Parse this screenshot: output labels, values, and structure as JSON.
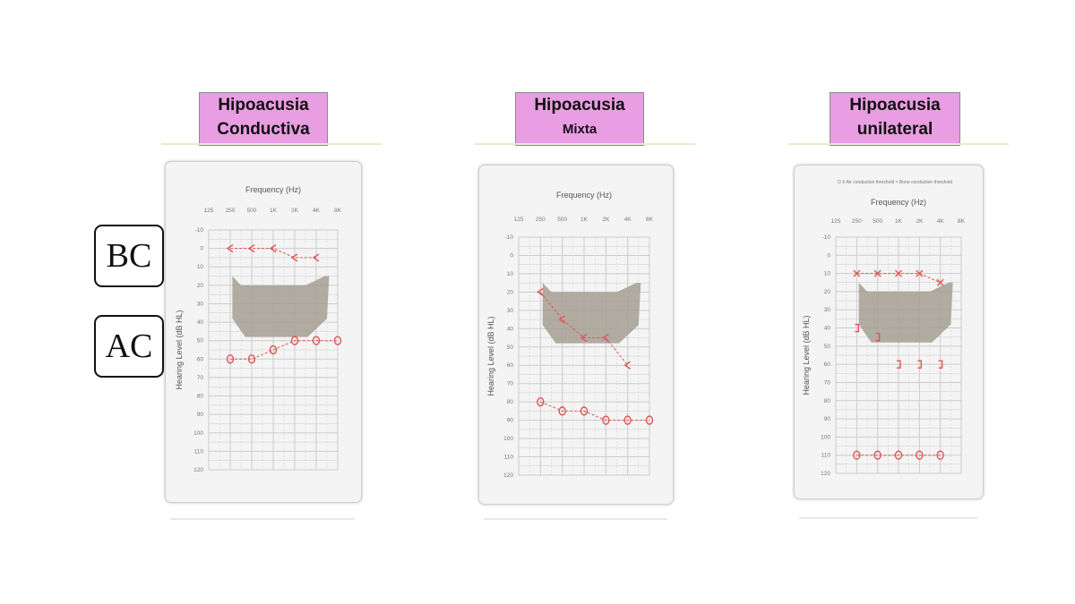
{
  "labels": {
    "bc": "BC",
    "ac": "AC"
  },
  "colors": {
    "title_bg": "#e99de3",
    "curve": "#e05555",
    "band": "#a59d93",
    "grid": "#cccccc"
  },
  "chart_data": [
    {
      "type": "line",
      "title_line1": "Hipoacusia",
      "title_line2": "Conductiva",
      "xlabel": "Frequency (Hz)",
      "ylabel": "Hearing Level (dB HL)",
      "x_ticks": [
        "125",
        "250",
        "500",
        "1K",
        "2K",
        "4K",
        "8K"
      ],
      "y_ticks": [
        "-10",
        "0",
        "10",
        "20",
        "30",
        "40",
        "50",
        "60",
        "70",
        "80",
        "90",
        "100",
        "110",
        "120"
      ],
      "ylim": [
        -10,
        120
      ],
      "y_inverted": true,
      "grid": true,
      "speech_banana": true,
      "series": [
        {
          "name": "BC",
          "marker": "<",
          "x_index": [
            1,
            2,
            3,
            4,
            5
          ],
          "values": [
            0,
            0,
            0,
            5,
            5
          ]
        },
        {
          "name": "AC",
          "marker": "O",
          "x_index": [
            1,
            2,
            3,
            4,
            5,
            6
          ],
          "values": [
            60,
            60,
            55,
            50,
            50,
            50
          ]
        }
      ]
    },
    {
      "type": "line",
      "title_line1": "Hipoacusia",
      "title_line2": "Mixta",
      "xlabel": "Frequency (Hz)",
      "ylabel": "Hearing Level (dB HL)",
      "x_ticks": [
        "125",
        "250",
        "500",
        "1K",
        "2K",
        "4K",
        "8K"
      ],
      "y_ticks": [
        "-10",
        "0",
        "10",
        "20",
        "30",
        "40",
        "50",
        "60",
        "70",
        "80",
        "90",
        "100",
        "110",
        "120"
      ],
      "ylim": [
        -10,
        120
      ],
      "y_inverted": true,
      "grid": true,
      "speech_banana": true,
      "series": [
        {
          "name": "BC",
          "marker": "<",
          "x_index": [
            1,
            2,
            3,
            4,
            5
          ],
          "values": [
            20,
            35,
            45,
            45,
            60
          ]
        },
        {
          "name": "AC",
          "marker": "O",
          "x_index": [
            1,
            2,
            3,
            4,
            5,
            6
          ],
          "values": [
            80,
            85,
            85,
            90,
            90,
            90
          ]
        }
      ]
    },
    {
      "type": "line",
      "title_line1": "Hipoacusia",
      "title_line2": "unilateral",
      "legend_text": "O X Air conduction threshold  < Bone conduction threshold",
      "xlabel": "Frequency (Hz)",
      "ylabel": "Hearing Level (dB HL)",
      "x_ticks": [
        "125",
        "250",
        "500",
        "1K",
        "2K",
        "4K",
        "8K"
      ],
      "y_ticks": [
        "-10",
        "0",
        "10",
        "20",
        "30",
        "40",
        "50",
        "60",
        "70",
        "80",
        "90",
        "100",
        "110",
        "120"
      ],
      "ylim": [
        -10,
        120
      ],
      "y_inverted": true,
      "grid": true,
      "speech_banana": true,
      "series": [
        {
          "name": "X",
          "marker": "X",
          "x_index": [
            1,
            2,
            3,
            4,
            5
          ],
          "values": [
            10,
            10,
            10,
            10,
            15
          ]
        },
        {
          "name": "]",
          "marker": "]",
          "x_index": [
            1,
            2,
            3,
            4,
            5
          ],
          "values": [
            40,
            45,
            60,
            60,
            60
          ]
        },
        {
          "name": "O",
          "marker": "O",
          "x_index": [
            1,
            2,
            3,
            4,
            5
          ],
          "values": [
            110,
            110,
            110,
            110,
            110
          ]
        }
      ]
    }
  ]
}
